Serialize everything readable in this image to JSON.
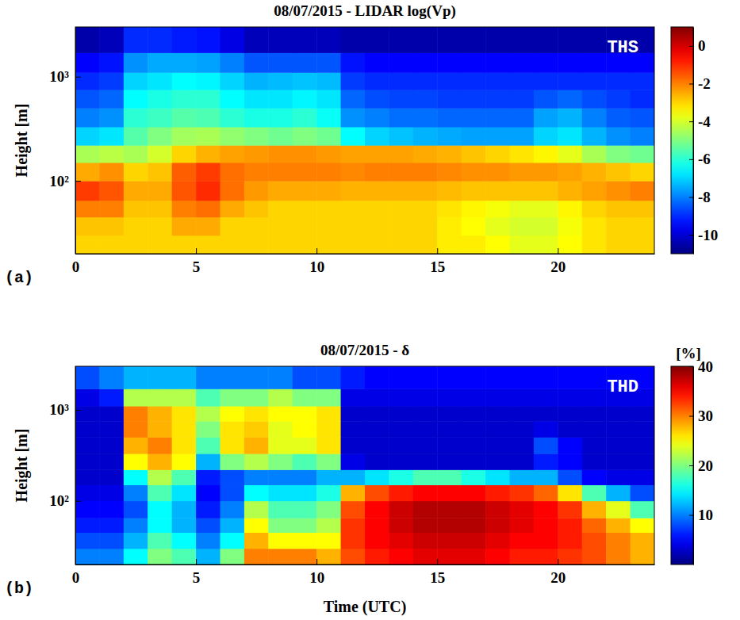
{
  "chart_data": [
    {
      "type": "heatmap",
      "title": "08/07/2015  - LIDAR log(Vp)",
      "ylabel": "Height [m]",
      "annotation": "THS",
      "panel": "(a)",
      "log": "y",
      "xlim": [
        0,
        24
      ],
      "xticks": [
        0,
        5,
        10,
        15,
        20
      ],
      "ylim": [
        20,
        3000
      ],
      "yticks": [
        {
          "value": 100,
          "label": "10²"
        },
        {
          "value": 1000,
          "label": "10³"
        }
      ],
      "x_bins": [
        0,
        1,
        2,
        3,
        4,
        5,
        6,
        7,
        8,
        9,
        10,
        11,
        12,
        13,
        14,
        15,
        16,
        17,
        18,
        19,
        20,
        21,
        22,
        23,
        24
      ],
      "y_bins": [
        20,
        30,
        45,
        65,
        100,
        150,
        220,
        330,
        500,
        750,
        1100,
        1700,
        3000
      ],
      "values": [
        [
          -3,
          -3,
          -3,
          -3,
          -3,
          -3,
          -3,
          -3,
          -3,
          -3,
          -3,
          -3,
          -3,
          -3,
          -3,
          -3.3,
          -3.3,
          -3.5,
          -3.8,
          -3.8,
          -3.5,
          -3.2,
          -3,
          -3
        ],
        [
          -2.8,
          -2.8,
          -3,
          -3,
          -2.5,
          -2.5,
          -3,
          -3,
          -3,
          -3,
          -3,
          -3,
          -3,
          -3,
          -3,
          -3.3,
          -3.5,
          -3.8,
          -4,
          -4,
          -3.6,
          -3.2,
          -3,
          -3
        ],
        [
          -2,
          -2,
          -2.8,
          -2.8,
          -2,
          -1.8,
          -2.5,
          -2.8,
          -3,
          -3,
          -3,
          -3,
          -3,
          -3,
          -3,
          -3.2,
          -3.4,
          -3.6,
          -3.8,
          -3.8,
          -3.4,
          -3,
          -2.8,
          -2.8
        ],
        [
          -1.2,
          -1.5,
          -2.5,
          -2.5,
          -1.5,
          -1,
          -1.8,
          -2.3,
          -2.5,
          -2.5,
          -2.5,
          -2.6,
          -2.6,
          -2.6,
          -2.6,
          -2.7,
          -2.8,
          -2.8,
          -2.8,
          -2.8,
          -2.6,
          -2.4,
          -2.2,
          -2
        ],
        [
          -2.5,
          -2.2,
          -3,
          -2.8,
          -1.6,
          -1.2,
          -1.8,
          -2,
          -2,
          -2,
          -2,
          -2.1,
          -2,
          -2,
          -2,
          -2.1,
          -2.2,
          -2.2,
          -2.3,
          -2.3,
          -2.4,
          -2.6,
          -2.8,
          -3
        ],
        [
          -4.5,
          -4.3,
          -4.5,
          -4,
          -3,
          -2.6,
          -2.4,
          -2.3,
          -2.2,
          -2.2,
          -2.3,
          -2.4,
          -2.4,
          -2.4,
          -2.5,
          -2.6,
          -2.8,
          -3,
          -3.2,
          -3.4,
          -3.8,
          -4.5,
          -5,
          -5.2
        ],
        [
          -7,
          -6.8,
          -5.5,
          -5,
          -4.6,
          -4.5,
          -4.8,
          -5,
          -5.2,
          -5,
          -5.2,
          -6.5,
          -7,
          -7.2,
          -7.4,
          -7.5,
          -7.6,
          -7.6,
          -7.6,
          -7,
          -6.8,
          -7.4,
          -7.8,
          -8
        ],
        [
          -8,
          -7.8,
          -6,
          -5.8,
          -5.5,
          -5.6,
          -6,
          -6.2,
          -6.2,
          -6,
          -6.4,
          -7.8,
          -8,
          -8.2,
          -8.2,
          -8.3,
          -8.3,
          -8.3,
          -8.3,
          -7.6,
          -7.4,
          -8,
          -8.4,
          -8.5
        ],
        [
          -8.5,
          -8.3,
          -6.5,
          -6.2,
          -6,
          -6,
          -6.5,
          -6.8,
          -6.8,
          -6.6,
          -6.8,
          -8.3,
          -8.6,
          -8.7,
          -8.7,
          -8.8,
          -8.8,
          -8.8,
          -8.8,
          -8.5,
          -8.3,
          -8.6,
          -8.8,
          -9
        ],
        [
          -9,
          -8.8,
          -7,
          -6.8,
          -6.5,
          -6.6,
          -7,
          -7.4,
          -7.3,
          -7.2,
          -7.3,
          -8.8,
          -9,
          -9,
          -9,
          -9,
          -9,
          -9,
          -9,
          -9,
          -9,
          -9,
          -9,
          -9
        ],
        [
          -9.5,
          -9.3,
          -7.8,
          -7.5,
          -7.5,
          -7.6,
          -8,
          -8.5,
          -8.5,
          -8.5,
          -8.5,
          -9.3,
          -9.5,
          -9.5,
          -9.5,
          -9.5,
          -9.5,
          -9.5,
          -9.5,
          -9.5,
          -9.5,
          -9.5,
          -9.5,
          -9.5
        ],
        [
          -10.5,
          -10.3,
          -9,
          -9,
          -9.2,
          -9.3,
          -9.8,
          -10.3,
          -10.3,
          -10.3,
          -10.3,
          -10.5,
          -10.5,
          -10.5,
          -10.5,
          -10.5,
          -10.5,
          -10.5,
          -10.5,
          -10.5,
          -10.5,
          -10.5,
          -10.5,
          -10.5
        ]
      ],
      "colorbar": {
        "lim": [
          -11,
          1
        ],
        "ticks": [
          -10,
          -8,
          -6,
          -4,
          -2,
          0
        ]
      }
    },
    {
      "type": "heatmap",
      "title": "08/07/2015  -  δ",
      "xlabel": "Time (UTC)",
      "ylabel": "Height [m]",
      "annotation": "THD",
      "panel": "(b)",
      "log": "y",
      "xlim": [
        0,
        24
      ],
      "xticks": [
        0,
        5,
        10,
        15,
        20
      ],
      "ylim": [
        20,
        3000
      ],
      "yticks": [
        {
          "value": 100,
          "label": "10²"
        },
        {
          "value": 1000,
          "label": "10³"
        }
      ],
      "x_bins": [
        0,
        1,
        2,
        3,
        4,
        5,
        6,
        7,
        8,
        9,
        10,
        11,
        12,
        13,
        14,
        15,
        16,
        17,
        18,
        19,
        20,
        21,
        22,
        23,
        24
      ],
      "y_bins": [
        20,
        30,
        45,
        65,
        100,
        150,
        220,
        330,
        500,
        750,
        1100,
        1700,
        3000
      ],
      "values": [
        [
          10,
          10,
          15,
          20,
          18,
          12,
          20,
          30,
          30,
          30,
          28,
          32,
          34,
          35,
          36,
          36,
          36,
          35,
          34,
          34,
          33,
          32,
          30,
          28
        ],
        [
          8,
          8,
          12,
          18,
          15,
          10,
          15,
          28,
          25,
          25,
          25,
          33,
          35,
          36,
          37,
          37,
          37,
          36,
          35,
          35,
          34,
          32,
          30,
          28
        ],
        [
          6,
          6,
          10,
          15,
          12,
          8,
          12,
          25,
          20,
          20,
          22,
          33,
          35,
          37,
          38,
          38,
          38,
          37,
          36,
          35,
          34,
          31,
          28,
          25
        ],
        [
          5,
          5,
          8,
          15,
          12,
          6,
          10,
          22,
          18,
          18,
          20,
          32,
          35,
          37,
          38,
          38,
          38,
          37,
          36,
          35,
          33,
          28,
          24,
          18
        ],
        [
          4,
          4,
          10,
          18,
          14,
          5,
          8,
          15,
          14,
          14,
          16,
          28,
          32,
          34,
          35,
          35,
          35,
          34,
          33,
          31,
          26,
          18,
          12,
          8
        ],
        [
          3,
          3,
          15,
          22,
          18,
          6,
          8,
          10,
          10,
          10,
          12,
          12,
          14,
          16,
          18,
          18,
          16,
          14,
          12,
          12,
          8,
          5,
          4,
          4
        ],
        [
          3,
          3,
          25,
          28,
          25,
          12,
          20,
          22,
          20,
          18,
          20,
          4,
          3,
          3,
          3,
          3,
          3,
          3,
          3,
          6,
          5,
          3,
          3,
          3
        ],
        [
          3,
          3,
          28,
          30,
          26,
          18,
          26,
          28,
          24,
          24,
          26,
          3,
          3,
          3,
          3,
          3,
          3,
          3,
          3,
          8,
          5,
          3,
          3,
          3
        ],
        [
          3,
          3,
          30,
          28,
          26,
          20,
          26,
          27,
          24,
          25,
          26,
          3,
          3,
          3,
          3,
          3,
          3,
          3,
          3,
          4,
          3,
          3,
          3,
          3
        ],
        [
          3,
          3,
          30,
          28,
          26,
          22,
          25,
          26,
          25,
          25,
          26,
          3,
          3,
          3,
          3,
          3,
          3,
          3,
          3,
          3,
          3,
          3,
          3,
          3
        ],
        [
          4,
          6,
          22,
          22,
          22,
          18,
          20,
          20,
          22,
          20,
          20,
          4,
          4,
          4,
          4,
          4,
          4,
          4,
          4,
          4,
          4,
          4,
          4,
          4
        ],
        [
          8,
          10,
          12,
          12,
          12,
          10,
          10,
          10,
          10,
          8,
          8,
          6,
          5,
          5,
          5,
          5,
          5,
          5,
          5,
          5,
          5,
          5,
          5,
          5
        ]
      ],
      "colorbar": {
        "lim": [
          0,
          40
        ],
        "ticks": [
          10,
          20,
          30,
          40
        ],
        "label": "[%]"
      }
    }
  ]
}
